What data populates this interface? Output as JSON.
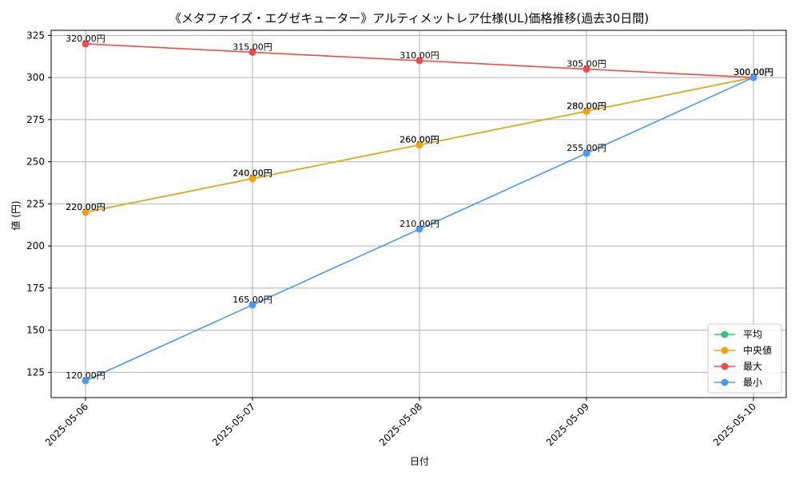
{
  "chart_data": {
    "type": "line",
    "title": "《メタファイズ・エグゼキューター》アルティメットレア仕様(UL)価格推移(過去30日間)",
    "xlabel": "日付",
    "ylabel": "値 (円)",
    "categories": [
      "2025-05-06",
      "2025-05-07",
      "2025-05-08",
      "2025-05-09",
      "2025-05-10"
    ],
    "ylim": [
      110,
      328
    ],
    "yticks": [
      125,
      150,
      175,
      200,
      225,
      250,
      275,
      300,
      325
    ],
    "grid": true,
    "legend_position": "lower-right",
    "series": [
      {
        "name": "平均",
        "color": "#2ecc71",
        "values": [
          220,
          240,
          260,
          280,
          300
        ],
        "labels": [
          "220.00円",
          "240.00円",
          "260.00円",
          "280.00円",
          "300.00円"
        ]
      },
      {
        "name": "中央値",
        "color": "#f0a30a",
        "values": [
          220,
          240,
          260,
          280,
          300
        ],
        "labels": [
          "220.00円",
          "240.00円",
          "260.00円",
          "280.00円",
          "300.00円"
        ]
      },
      {
        "name": "最大",
        "color": "#f44b47",
        "values": [
          320,
          315,
          310,
          305,
          300
        ],
        "labels": [
          "320.00円",
          "315.00円",
          "310.00円",
          "305.00円",
          "300.00円"
        ]
      },
      {
        "name": "最小",
        "color": "#4a9af5",
        "values": [
          120,
          165,
          210,
          255,
          300
        ],
        "labels": [
          "120.00円",
          "165.00円",
          "210.00円",
          "255.00円",
          "300.00円"
        ]
      }
    ]
  }
}
